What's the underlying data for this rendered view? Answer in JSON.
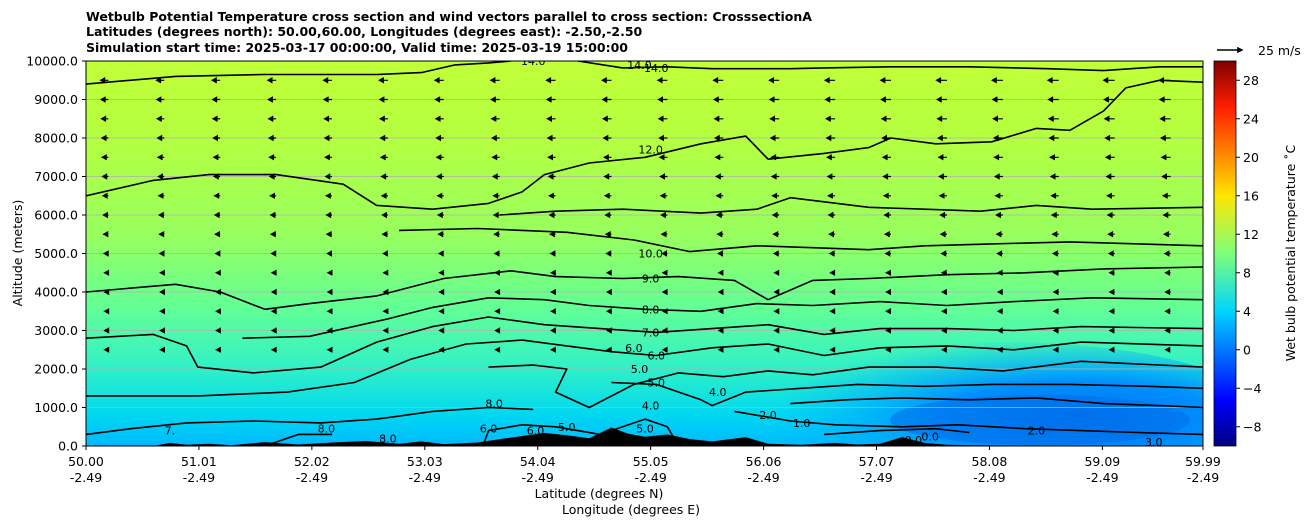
{
  "chart_data": {
    "type": "heatmap",
    "title_lines": [
      "Wetbulb Potential Temperature cross section and wind vectors parallel to cross section: CrosssectionA",
      "Latitudes (degrees north): 50.00,60.00, Longitudes (degrees east): -2.50,-2.50",
      "Simulation start time: 2025-03-17 00:00:00, Valid time: 2025-03-19 15:00:00"
    ],
    "ylabel": "Altitude (meters)",
    "xlabel_lines": [
      "Latitude (degrees N)",
      "Longitude (degrees E)"
    ],
    "xlim": [
      50.0,
      59.99
    ],
    "ylim": [
      0,
      10000
    ],
    "x_ticks": [
      {
        "lat": "50.00",
        "lon": "-2.49"
      },
      {
        "lat": "51.01",
        "lon": "-2.49"
      },
      {
        "lat": "52.02",
        "lon": "-2.49"
      },
      {
        "lat": "53.03",
        "lon": "-2.49"
      },
      {
        "lat": "54.04",
        "lon": "-2.49"
      },
      {
        "lat": "55.05",
        "lon": "-2.49"
      },
      {
        "lat": "56.06",
        "lon": "-2.49"
      },
      {
        "lat": "57.07",
        "lon": "-2.49"
      },
      {
        "lat": "58.08",
        "lon": "-2.49"
      },
      {
        "lat": "59.09",
        "lon": "-2.49"
      },
      {
        "lat": "59.99",
        "lon": "-2.49"
      }
    ],
    "y_ticks": [
      "0.0",
      "1000.0",
      "2000.0",
      "3000.0",
      "4000.0",
      "5000.0",
      "6000.0",
      "7000.0",
      "8000.0",
      "9000.0",
      "10000.0"
    ],
    "grid": "horizontal",
    "colorbar": {
      "label": "Wet bulb potential temperature ˚C",
      "range": [
        -10,
        30
      ],
      "ticks": [
        "−8",
        "−4",
        "0",
        "4",
        "8",
        "12",
        "16",
        "20",
        "24",
        "28"
      ],
      "colormap": "jet"
    },
    "quiver_key": {
      "label": "25 m/s",
      "value": 25
    },
    "contour_labels": [
      {
        "text": "14.0",
        "lat": 54.0,
        "alt": 10000
      },
      {
        "text": "14.0",
        "lat": 54.95,
        "alt": 9900
      },
      {
        "text": "14.0",
        "lat": 55.1,
        "alt": 9820
      },
      {
        "text": "12.0",
        "lat": 55.05,
        "alt": 7700
      },
      {
        "text": "10.0",
        "lat": 55.05,
        "alt": 5000
      },
      {
        "text": "9.0",
        "lat": 55.05,
        "alt": 4350
      },
      {
        "text": "8.0",
        "lat": 55.05,
        "alt": 3550
      },
      {
        "text": "7.0",
        "lat": 55.05,
        "alt": 2950
      },
      {
        "text": "6.0",
        "lat": 54.9,
        "alt": 2550
      },
      {
        "text": "6.0",
        "lat": 55.1,
        "alt": 2350
      },
      {
        "text": "5.0",
        "lat": 54.95,
        "alt": 2000
      },
      {
        "text": "5.0",
        "lat": 55.1,
        "alt": 1650
      },
      {
        "text": "4.0",
        "lat": 55.05,
        "alt": 1050
      },
      {
        "text": "4.0",
        "lat": 55.65,
        "alt": 1400
      },
      {
        "text": "2.0",
        "lat": 56.1,
        "alt": 800
      },
      {
        "text": "1.0",
        "lat": 56.4,
        "alt": 600
      },
      {
        "text": "0.0",
        "lat": 57.4,
        "alt": 150
      },
      {
        "text": "0.0",
        "lat": 57.55,
        "alt": 250
      },
      {
        "text": "2.0",
        "lat": 58.5,
        "alt": 400
      },
      {
        "text": "3.0",
        "lat": 59.55,
        "alt": 100
      },
      {
        "text": "8.0",
        "lat": 53.65,
        "alt": 1100
      },
      {
        "text": "8.0",
        "lat": 52.15,
        "alt": 450
      },
      {
        "text": "8.0",
        "lat": 52.7,
        "alt": 200
      },
      {
        "text": "7.",
        "lat": 50.75,
        "alt": 400
      },
      {
        "text": "6.0",
        "lat": 54.02,
        "alt": 400
      },
      {
        "text": "6.0",
        "lat": 53.6,
        "alt": 450
      },
      {
        "text": "5.0",
        "lat": 54.3,
        "alt": 500
      },
      {
        "text": "5.0",
        "lat": 55.0,
        "alt": 450
      }
    ],
    "contours": [
      {
        "level": 14.0,
        "points": [
          [
            50.0,
            9400
          ],
          [
            50.8,
            9600
          ],
          [
            51.6,
            9650
          ],
          [
            52.6,
            9650
          ],
          [
            53.0,
            9700
          ],
          [
            53.3,
            9900
          ],
          [
            53.6,
            9950
          ],
          [
            53.8,
            10000
          ]
        ]
      },
      {
        "level": 14.0,
        "points": [
          [
            54.4,
            10000
          ],
          [
            54.8,
            9820
          ],
          [
            55.2,
            9850
          ],
          [
            55.6,
            9800
          ],
          [
            56.3,
            9800
          ],
          [
            56.6,
            9820
          ],
          [
            57.2,
            9850
          ],
          [
            57.9,
            9850
          ],
          [
            58.6,
            9800
          ],
          [
            59.1,
            9750
          ],
          [
            59.6,
            9850
          ],
          [
            59.99,
            9850
          ]
        ]
      },
      {
        "level": 12.0,
        "points": [
          [
            50.0,
            6500
          ],
          [
            50.6,
            6900
          ],
          [
            51.1,
            7050
          ],
          [
            51.7,
            7050
          ],
          [
            52.3,
            6800
          ],
          [
            52.6,
            6250
          ],
          [
            53.1,
            6150
          ],
          [
            53.6,
            6300
          ],
          [
            53.9,
            6600
          ],
          [
            54.1,
            7050
          ],
          [
            54.5,
            7350
          ],
          [
            55.0,
            7500
          ],
          [
            55.5,
            7850
          ],
          [
            55.9,
            8050
          ],
          [
            56.1,
            7450
          ],
          [
            56.6,
            7600
          ],
          [
            57.0,
            7750
          ],
          [
            57.2,
            8000
          ],
          [
            57.6,
            7850
          ],
          [
            58.1,
            7900
          ],
          [
            58.5,
            8250
          ],
          [
            58.8,
            8200
          ],
          [
            59.1,
            8700
          ],
          [
            59.3,
            9300
          ],
          [
            59.6,
            9500
          ],
          [
            59.99,
            9450
          ]
        ]
      },
      {
        "level": 11.0,
        "points": [
          [
            53.7,
            6000
          ],
          [
            54.2,
            6100
          ],
          [
            54.8,
            6150
          ],
          [
            55.5,
            6050
          ],
          [
            56.0,
            6150
          ],
          [
            56.3,
            6450
          ],
          [
            57.0,
            6200
          ],
          [
            57.5,
            6150
          ],
          [
            58.0,
            6100
          ],
          [
            58.5,
            6250
          ],
          [
            59.0,
            6150
          ],
          [
            59.99,
            6200
          ]
        ]
      },
      {
        "level": 10.0,
        "points": [
          [
            52.8,
            5600
          ],
          [
            53.5,
            5650
          ],
          [
            54.3,
            5550
          ],
          [
            54.9,
            5350
          ],
          [
            55.4,
            5050
          ],
          [
            56.0,
            5200
          ],
          [
            56.5,
            5150
          ],
          [
            57.0,
            5100
          ],
          [
            57.5,
            5200
          ],
          [
            58.1,
            5250
          ],
          [
            58.8,
            5300
          ],
          [
            59.99,
            5200
          ]
        ]
      },
      {
        "level": 9.0,
        "points": [
          [
            50.0,
            4000
          ],
          [
            50.8,
            4200
          ],
          [
            51.2,
            4000
          ],
          [
            51.6,
            3550
          ],
          [
            52.0,
            3700
          ],
          [
            52.6,
            3900
          ],
          [
            53.2,
            4350
          ],
          [
            53.8,
            4550
          ],
          [
            54.2,
            4400
          ],
          [
            54.8,
            4350
          ],
          [
            55.3,
            4400
          ],
          [
            55.8,
            4300
          ],
          [
            56.1,
            3800
          ],
          [
            56.5,
            4300
          ],
          [
            57.0,
            4350
          ],
          [
            57.7,
            4450
          ],
          [
            58.4,
            4500
          ],
          [
            59.1,
            4600
          ],
          [
            59.99,
            4650
          ]
        ]
      },
      {
        "level": 8.0,
        "points": [
          [
            51.4,
            2800
          ],
          [
            52.0,
            2850
          ],
          [
            52.7,
            3300
          ],
          [
            53.1,
            3600
          ],
          [
            53.6,
            3850
          ],
          [
            54.1,
            3800
          ],
          [
            54.5,
            3650
          ],
          [
            55.0,
            3550
          ],
          [
            55.5,
            3500
          ],
          [
            56.0,
            3700
          ],
          [
            56.5,
            3650
          ],
          [
            57.1,
            3750
          ],
          [
            57.7,
            3650
          ],
          [
            58.3,
            3750
          ],
          [
            59.0,
            3850
          ],
          [
            59.99,
            3800
          ]
        ]
      },
      {
        "level": 7.0,
        "points": [
          [
            50.0,
            2800
          ],
          [
            50.6,
            2900
          ],
          [
            50.9,
            2600
          ],
          [
            51.0,
            2050
          ],
          [
            51.5,
            1900
          ],
          [
            52.1,
            2050
          ],
          [
            52.6,
            2700
          ],
          [
            53.1,
            3100
          ],
          [
            53.6,
            3350
          ],
          [
            54.1,
            3150
          ],
          [
            54.6,
            3050
          ],
          [
            55.1,
            2950
          ],
          [
            55.6,
            3050
          ],
          [
            56.1,
            3150
          ],
          [
            56.6,
            2900
          ],
          [
            57.1,
            3050
          ],
          [
            57.7,
            3050
          ],
          [
            58.3,
            3000
          ],
          [
            58.9,
            3100
          ],
          [
            59.99,
            3050
          ]
        ]
      },
      {
        "level": 6.0,
        "points": [
          [
            50.0,
            1300
          ],
          [
            51.0,
            1300
          ],
          [
            51.8,
            1400
          ],
          [
            52.4,
            1650
          ],
          [
            52.9,
            2250
          ],
          [
            53.4,
            2650
          ],
          [
            53.9,
            2750
          ],
          [
            54.3,
            2600
          ],
          [
            54.7,
            2450
          ],
          [
            55.1,
            2350
          ],
          [
            55.6,
            2550
          ],
          [
            56.1,
            2650
          ],
          [
            56.6,
            2350
          ],
          [
            57.1,
            2550
          ],
          [
            57.7,
            2600
          ],
          [
            58.3,
            2500
          ],
          [
            58.9,
            2700
          ],
          [
            59.99,
            2600
          ]
        ]
      },
      {
        "level": 5.0,
        "points": [
          [
            53.6,
            2050
          ],
          [
            54.0,
            2100
          ],
          [
            54.3,
            2000
          ],
          [
            54.2,
            1400
          ],
          [
            54.5,
            1000
          ],
          [
            54.9,
            1600
          ],
          [
            55.3,
            1900
          ],
          [
            55.7,
            1800
          ],
          [
            56.1,
            1950
          ],
          [
            56.5,
            1850
          ],
          [
            57.0,
            2050
          ],
          [
            57.6,
            2050
          ],
          [
            58.2,
            1950
          ],
          [
            58.9,
            2200
          ],
          [
            59.99,
            2050
          ]
        ]
      },
      {
        "level": 4.0,
        "points": [
          [
            54.7,
            1650
          ],
          [
            55.1,
            1600
          ],
          [
            55.5,
            1200
          ],
          [
            55.6,
            1050
          ],
          [
            55.9,
            1400
          ],
          [
            56.4,
            1500
          ],
          [
            56.9,
            1600
          ],
          [
            57.5,
            1550
          ],
          [
            58.1,
            1600
          ],
          [
            58.8,
            1600
          ],
          [
            59.5,
            1550
          ],
          [
            59.99,
            1500
          ]
        ]
      },
      {
        "level": 3.0,
        "points": [
          [
            56.3,
            1100
          ],
          [
            56.8,
            1200
          ],
          [
            57.3,
            1250
          ],
          [
            57.9,
            1200
          ],
          [
            58.5,
            1250
          ],
          [
            59.1,
            1100
          ],
          [
            59.6,
            1050
          ],
          [
            59.99,
            1000
          ]
        ]
      },
      {
        "level": 2.0,
        "points": [
          [
            55.8,
            900
          ],
          [
            56.3,
            650
          ],
          [
            56.7,
            550
          ],
          [
            57.3,
            500
          ],
          [
            57.8,
            550
          ],
          [
            58.4,
            450
          ],
          [
            58.9,
            400
          ],
          [
            59.4,
            350
          ],
          [
            59.99,
            300
          ]
        ]
      },
      {
        "level": 1.0,
        "points": [
          [
            56.6,
            300
          ],
          [
            57.1,
            400
          ],
          [
            57.6,
            450
          ],
          [
            57.9,
            350
          ]
        ]
      },
      {
        "level": 8.0,
        "points": [
          [
            50.0,
            300
          ],
          [
            50.4,
            450
          ],
          [
            50.9,
            600
          ],
          [
            51.5,
            650
          ],
          [
            52.1,
            600
          ],
          [
            52.6,
            700
          ],
          [
            53.1,
            900
          ],
          [
            53.6,
            1000
          ],
          [
            54.0,
            950
          ]
        ]
      },
      {
        "level": 8.0,
        "points": [
          [
            51.6,
            0
          ],
          [
            51.9,
            300
          ],
          [
            52.2,
            300
          ]
        ]
      },
      {
        "level": 6.0,
        "points": [
          [
            53.55,
            0
          ],
          [
            53.6,
            400
          ],
          [
            53.9,
            550
          ],
          [
            54.2,
            500
          ],
          [
            54.6,
            300
          ],
          [
            55.0,
            700
          ],
          [
            55.2,
            500
          ],
          [
            55.3,
            0
          ]
        ]
      }
    ],
    "terrain": [
      [
        50.0,
        0
      ],
      [
        50.6,
        0
      ],
      [
        50.75,
        80
      ],
      [
        50.9,
        30
      ],
      [
        51.1,
        60
      ],
      [
        51.3,
        20
      ],
      [
        51.6,
        100
      ],
      [
        51.9,
        40
      ],
      [
        52.2,
        90
      ],
      [
        52.5,
        130
      ],
      [
        52.8,
        60
      ],
      [
        53.0,
        120
      ],
      [
        53.2,
        50
      ],
      [
        53.5,
        90
      ],
      [
        53.7,
        180
      ],
      [
        53.9,
        260
      ],
      [
        54.1,
        340
      ],
      [
        54.3,
        280
      ],
      [
        54.5,
        200
      ],
      [
        54.7,
        480
      ],
      [
        54.85,
        320
      ],
      [
        55.0,
        240
      ],
      [
        55.2,
        300
      ],
      [
        55.4,
        180
      ],
      [
        55.6,
        120
      ],
      [
        55.9,
        230
      ],
      [
        56.1,
        60
      ],
      [
        56.4,
        30
      ],
      [
        56.7,
        80
      ],
      [
        56.9,
        40
      ],
      [
        57.1,
        60
      ],
      [
        57.3,
        230
      ],
      [
        57.5,
        80
      ],
      [
        57.7,
        30
      ],
      [
        58.0,
        20
      ],
      [
        58.5,
        10
      ],
      [
        59.0,
        0
      ],
      [
        59.99,
        0
      ]
    ],
    "wind_vectors": {
      "units": "m/s",
      "rows_alt": [
        8000,
        8500,
        9000,
        9500,
        7500,
        7000,
        6500,
        6000,
        5500,
        5000,
        4500,
        4000,
        3500,
        3000,
        2500
      ]
    }
  }
}
